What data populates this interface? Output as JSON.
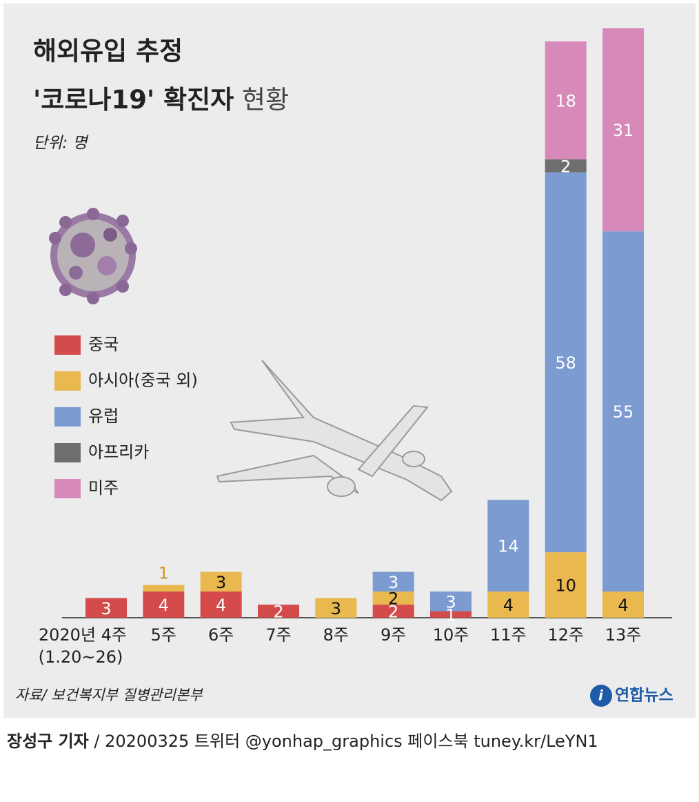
{
  "chart_data": {
    "type": "bar",
    "stacked": true,
    "title_line1": "해외유입 추정",
    "title_line2": "'코로나19' 확진자",
    "title_line2_suffix": "현황",
    "unit": "단위: 명",
    "categories": [
      "2020년 4주",
      "5주",
      "6주",
      "7주",
      "8주",
      "9주",
      "10주",
      "11주",
      "12주",
      "13주"
    ],
    "category_note": "(1.20~26)",
    "series": [
      {
        "name": "중국",
        "color": "#d44b4b",
        "values": [
          3,
          4,
          4,
          2,
          0,
          2,
          1,
          0,
          0,
          0
        ]
      },
      {
        "name": "아시아(중국 외)",
        "color": "#e9b84e",
        "values": [
          0,
          1,
          3,
          0,
          3,
          2,
          0,
          4,
          10,
          4
        ]
      },
      {
        "name": "유럽",
        "color": "#7b9bd1",
        "values": [
          0,
          0,
          0,
          0,
          0,
          3,
          3,
          14,
          58,
          55
        ]
      },
      {
        "name": "아프리카",
        "color": "#6e6e6e",
        "values": [
          0,
          0,
          0,
          0,
          0,
          0,
          0,
          0,
          2,
          0
        ]
      },
      {
        "name": "미주",
        "color": "#d78ab9",
        "values": [
          0,
          0,
          0,
          0,
          0,
          0,
          0,
          0,
          18,
          31
        ]
      }
    ],
    "ylim": [
      0,
      90
    ],
    "source": "자료/ 보건복지부 질병관리본부",
    "logo": "연합뉴스",
    "reporter": "장성구 기자",
    "credit": "/ 20200325  트위터 @yonhap_graphics  페이스북 tuney.kr/LeYN1"
  }
}
